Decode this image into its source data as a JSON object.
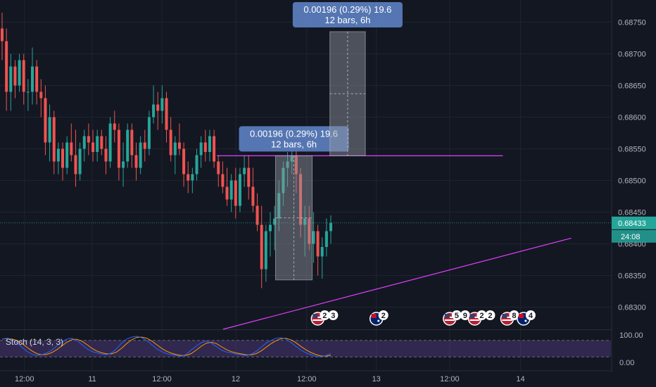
{
  "chart_data": {
    "type": "candlestick",
    "price_axis": {
      "range": [
        0.68265,
        0.68785
      ],
      "ticks": [
        "0.68750",
        "0.68700",
        "0.68650",
        "0.68600",
        "0.68550",
        "0.68500",
        "0.68450",
        "0.68400",
        "0.68350",
        "0.68300"
      ]
    },
    "time_axis": {
      "range": [
        0,
        100
      ],
      "ticks": [
        {
          "label": "12:00",
          "pos": 4
        },
        {
          "label": "11",
          "pos": 15.1
        },
        {
          "label": "12:00",
          "pos": 26.5
        },
        {
          "label": "12",
          "pos": 38.6
        },
        {
          "label": "12:00",
          "pos": 50.2
        },
        {
          "label": "13",
          "pos": 61.6
        },
        {
          "label": "12:00",
          "pos": 73.6
        },
        {
          "label": "14",
          "pos": 85.2
        }
      ]
    },
    "current_price": {
      "value": "0.68433",
      "countdown": "24:08",
      "level": 0.68433
    },
    "horizontal_line": {
      "price": 0.68539,
      "x_start": 35.5,
      "x_end": 82.3,
      "color": "#e040fb"
    },
    "trend_line": {
      "start": [
        36.5,
        0.68265
      ],
      "end": [
        93.5,
        0.68409
      ],
      "color": "#e040fb"
    },
    "measure_tools": [
      {
        "text1": "0.00196 (0.29%) 19.6",
        "text2": "12 bars, 6h",
        "x0": 45.1,
        "x1": 51.1,
        "p_low": 0.68343,
        "p_high": 0.68539
      },
      {
        "text1": "0.00196 (0.29%) 19.6",
        "text2": "12 bars, 6h",
        "x0": 54.0,
        "x1": 59.8,
        "p_low": 0.68539,
        "p_high": 0.68735
      }
    ],
    "event_badges": [
      {
        "x": 52.0,
        "flag": "us",
        "count": "2",
        "extra": "3"
      },
      {
        "x": 61.6,
        "flag": "au",
        "count": "2",
        "extra": ""
      },
      {
        "x": 73.6,
        "flag": "us",
        "count": "5",
        "extra": "9"
      },
      {
        "x": 77.7,
        "flag": "us",
        "count": "2",
        "extra": "2"
      },
      {
        "x": 83.0,
        "flag": "us",
        "count": "8",
        "extra": ""
      },
      {
        "x": 85.7,
        "flag": "au",
        "count": "4",
        "extra": ""
      }
    ],
    "candles": [
      [
        0.6874,
        0.68765,
        0.6869,
        0.6872
      ],
      [
        0.6872,
        0.6874,
        0.6861,
        0.6864
      ],
      [
        0.6864,
        0.687,
        0.6861,
        0.6868
      ],
      [
        0.6868,
        0.6869,
        0.6863,
        0.6865
      ],
      [
        0.6865,
        0.687,
        0.6864,
        0.6869
      ],
      [
        0.6869,
        0.687,
        0.6862,
        0.6864
      ],
      [
        0.6864,
        0.6866,
        0.6861,
        0.6864
      ],
      [
        0.6864,
        0.6871,
        0.6862,
        0.6868
      ],
      [
        0.6868,
        0.6869,
        0.6862,
        0.6864
      ],
      [
        0.6864,
        0.6866,
        0.686,
        0.6863
      ],
      [
        0.6863,
        0.6865,
        0.6854,
        0.6856
      ],
      [
        0.6856,
        0.6862,
        0.6853,
        0.686
      ],
      [
        0.686,
        0.6861,
        0.6851,
        0.6853
      ],
      [
        0.6853,
        0.6856,
        0.6851,
        0.6855
      ],
      [
        0.6855,
        0.6856,
        0.685,
        0.6852
      ],
      [
        0.6852,
        0.6857,
        0.6851,
        0.6856
      ],
      [
        0.6856,
        0.6859,
        0.6853,
        0.6854
      ],
      [
        0.6854,
        0.6858,
        0.6849,
        0.6851
      ],
      [
        0.6851,
        0.6856,
        0.685,
        0.6855
      ],
      [
        0.6855,
        0.6858,
        0.6853,
        0.6857
      ],
      [
        0.6857,
        0.6859,
        0.6854,
        0.6856
      ],
      [
        0.6856,
        0.6858,
        0.6853,
        0.68545
      ],
      [
        0.68545,
        0.6858,
        0.6853,
        0.6857
      ],
      [
        0.6857,
        0.6858,
        0.6854,
        0.6855
      ],
      [
        0.6855,
        0.6857,
        0.6851,
        0.6853
      ],
      [
        0.6853,
        0.686,
        0.6852,
        0.6859
      ],
      [
        0.6859,
        0.6861,
        0.6856,
        0.6858
      ],
      [
        0.6858,
        0.6859,
        0.685,
        0.6852
      ],
      [
        0.6852,
        0.6856,
        0.6849,
        0.6853
      ],
      [
        0.6853,
        0.6859,
        0.6852,
        0.6858
      ],
      [
        0.6858,
        0.6859,
        0.6852,
        0.6854
      ],
      [
        0.6854,
        0.6856,
        0.685,
        0.6852
      ],
      [
        0.6852,
        0.6857,
        0.6851,
        0.6856
      ],
      [
        0.6856,
        0.6858,
        0.6853,
        0.6855
      ],
      [
        0.6855,
        0.6861,
        0.6854,
        0.686
      ],
      [
        0.686,
        0.6865,
        0.6859,
        0.6862
      ],
      [
        0.6862,
        0.6864,
        0.6858,
        0.6861
      ],
      [
        0.6861,
        0.6865,
        0.6859,
        0.6863
      ],
      [
        0.6863,
        0.6864,
        0.6856,
        0.6858
      ],
      [
        0.6858,
        0.686,
        0.6853,
        0.6854
      ],
      [
        0.6854,
        0.6857,
        0.6851,
        0.6856
      ],
      [
        0.6856,
        0.6859,
        0.6854,
        0.6855
      ],
      [
        0.6855,
        0.6856,
        0.6849,
        0.6851
      ],
      [
        0.6851,
        0.6853,
        0.6848,
        0.685
      ],
      [
        0.685,
        0.6852,
        0.6848,
        0.6851
      ],
      [
        0.6851,
        0.6855,
        0.685,
        0.6854
      ],
      [
        0.6854,
        0.6857,
        0.6852,
        0.6856
      ],
      [
        0.6856,
        0.6858,
        0.6853,
        0.68545
      ],
      [
        0.68545,
        0.6858,
        0.6853,
        0.6857
      ],
      [
        0.6857,
        0.6858,
        0.6852,
        0.6853
      ],
      [
        0.6853,
        0.6854,
        0.6849,
        0.6851
      ],
      [
        0.6851,
        0.6853,
        0.6848,
        0.6849
      ],
      [
        0.6849,
        0.6852,
        0.6846,
        0.6847
      ],
      [
        0.6847,
        0.6851,
        0.6845,
        0.685
      ],
      [
        0.685,
        0.6852,
        0.6844,
        0.6846
      ],
      [
        0.6846,
        0.6852,
        0.6845,
        0.6851
      ],
      [
        0.6851,
        0.6854,
        0.6849,
        0.6852
      ],
      [
        0.6852,
        0.6854,
        0.6847,
        0.6849
      ],
      [
        0.6849,
        0.6852,
        0.6845,
        0.6846
      ],
      [
        0.6846,
        0.6848,
        0.6842,
        0.6843
      ],
      [
        0.6843,
        0.6846,
        0.6833,
        0.6836
      ],
      [
        0.6836,
        0.6843,
        0.6834,
        0.6842
      ],
      [
        0.6842,
        0.6845,
        0.6838,
        0.6843
      ],
      [
        0.6843,
        0.6846,
        0.6839,
        0.6844
      ],
      [
        0.6844,
        0.685,
        0.6842,
        0.6848
      ],
      [
        0.6848,
        0.6853,
        0.6846,
        0.6852
      ],
      [
        0.6852,
        0.68545,
        0.6849,
        0.6853
      ],
      [
        0.6853,
        0.6856,
        0.6851,
        0.6854
      ],
      [
        0.6854,
        0.6856,
        0.6848,
        0.6851
      ],
      [
        0.6851,
        0.6852,
        0.6841,
        0.6843
      ],
      [
        0.6843,
        0.6846,
        0.6838,
        0.6844
      ],
      [
        0.6844,
        0.6846,
        0.6839,
        0.684
      ],
      [
        0.684,
        0.6845,
        0.6837,
        0.6842
      ],
      [
        0.6842,
        0.6843,
        0.6835,
        0.6838
      ],
      [
        0.6838,
        0.6841,
        0.68345,
        0.68395
      ],
      [
        0.68395,
        0.6844,
        0.6838,
        0.6842
      ],
      [
        0.6842,
        0.68445,
        0.684,
        0.68433
      ]
    ],
    "stochastic": {
      "label": "Stoch (14, 3, 3)",
      "range": [
        0,
        100
      ],
      "ticks": [
        "100.00",
        "0.00"
      ],
      "band": [
        20,
        80
      ],
      "k": [
        85,
        88,
        82,
        70,
        55,
        40,
        30,
        25,
        28,
        35,
        45,
        60,
        75,
        85,
        88,
        80,
        65,
        50,
        40,
        35,
        30,
        28,
        35,
        50,
        70,
        85,
        92,
        95,
        90,
        80,
        65,
        50,
        40,
        32,
        28,
        25,
        22,
        30,
        45,
        60,
        72,
        78,
        70,
        58,
        45,
        38,
        35,
        30,
        28,
        25,
        30,
        40,
        55,
        70,
        80,
        88,
        90,
        85,
        72,
        58,
        45,
        35,
        28,
        22,
        20,
        25,
        32
      ]
    }
  }
}
